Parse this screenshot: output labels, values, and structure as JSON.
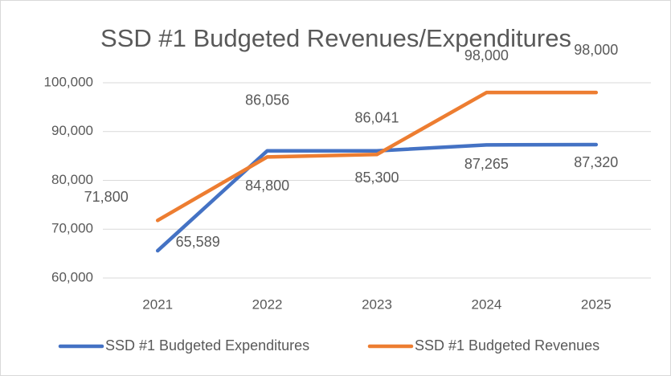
{
  "chart_data": {
    "type": "line",
    "title": "SSD #1 Budgeted Revenues/Expenditures",
    "categories": [
      "2021",
      "2022",
      "2023",
      "2024",
      "2025"
    ],
    "series": [
      {
        "name": "SSD #1 Budgeted Expenditures",
        "color": "#4472c4",
        "values": [
          65589,
          86056,
          86041,
          87265,
          87320
        ],
        "value_labels": [
          "65,589",
          "86,056",
          "86,041",
          "87,265",
          "87,320"
        ]
      },
      {
        "name": "SSD #1 Budgeted Revenues",
        "color": "#ed7d31",
        "values": [
          71800,
          84800,
          85300,
          98000,
          98000
        ],
        "value_labels": [
          "71,800",
          "84,800",
          "85,300",
          "98,000",
          "98,000"
        ]
      }
    ],
    "ylim": [
      60000,
      100000
    ],
    "yticks": [
      {
        "value": 60000,
        "label": "60,000"
      },
      {
        "value": 70000,
        "label": "70,000"
      },
      {
        "value": 80000,
        "label": "80,000"
      },
      {
        "value": 90000,
        "label": "90,000"
      },
      {
        "value": 100000,
        "label": "100,000"
      }
    ],
    "grid": true,
    "legend": "bottom"
  }
}
